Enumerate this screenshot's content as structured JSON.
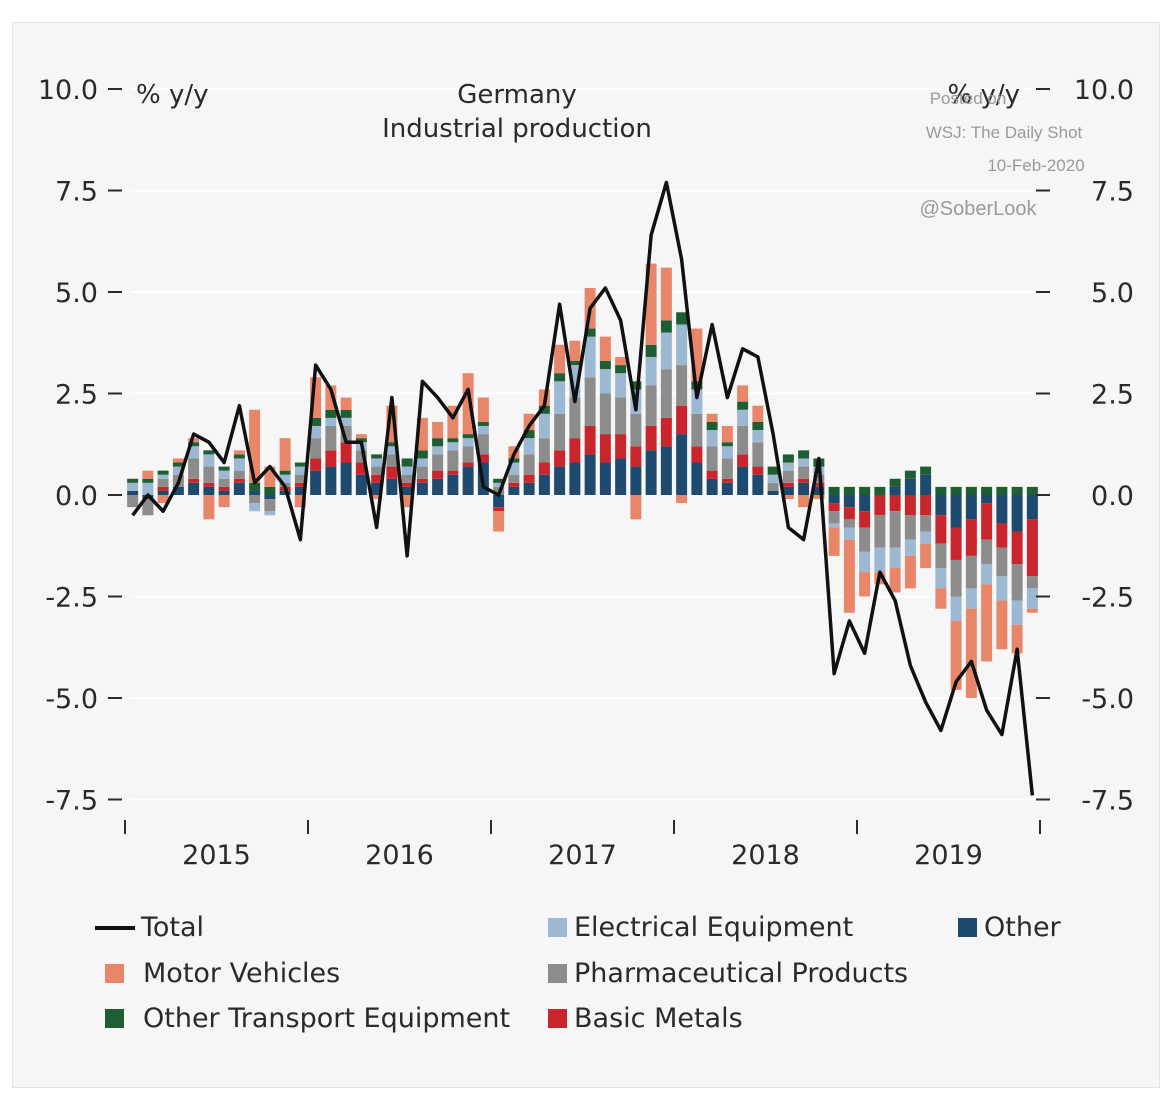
{
  "chart_data": {
    "type": "bar",
    "stacked": true,
    "title": "Germany",
    "subtitle": "Industrial production",
    "unit_left": "% y/y",
    "unit_right": "% y/y",
    "ylim": [
      -7.5,
      10.0
    ],
    "y_ticks": [
      "10.0",
      "7.5",
      "5.0",
      "2.5",
      "0.0",
      "-2.5",
      "-5.0",
      "-7.5"
    ],
    "y_tick_values": [
      10.0,
      7.5,
      5.0,
      2.5,
      0.0,
      -2.5,
      -5.0,
      -7.5
    ],
    "year_labels": [
      "2015",
      "2016",
      "2017",
      "2018",
      "2019"
    ],
    "source_lines": [
      "Posted on",
      "WSJ: The Daily Shot",
      "10-Feb-2020",
      "@SoberLook"
    ],
    "colors": {
      "Total": "#111111",
      "Motor Vehicles": "#e8866a",
      "Other Transport Equipment": "#1e5e32",
      "Electrical Equipment": "#9cb8d2",
      "Pharmaceutical Products": "#8c8c8c",
      "Basic Metals": "#c8262c",
      "Other": "#1d4a6e"
    },
    "legend": [
      {
        "name": "Total",
        "kind": "line"
      },
      {
        "name": "Electrical Equipment",
        "kind": "box"
      },
      {
        "name": "Other",
        "kind": "box"
      },
      {
        "name": "Motor Vehicles",
        "kind": "box"
      },
      {
        "name": "Pharmaceutical Products",
        "kind": "box"
      },
      {
        "name": "Other Transport Equipment",
        "kind": "box"
      },
      {
        "name": "Basic Metals",
        "kind": "box"
      }
    ],
    "months": [
      "2015-01",
      "2015-02",
      "2015-03",
      "2015-04",
      "2015-05",
      "2015-06",
      "2015-07",
      "2015-08",
      "2015-09",
      "2015-10",
      "2015-11",
      "2015-12",
      "2016-01",
      "2016-02",
      "2016-03",
      "2016-04",
      "2016-05",
      "2016-06",
      "2016-07",
      "2016-08",
      "2016-09",
      "2016-10",
      "2016-11",
      "2016-12",
      "2017-01",
      "2017-02",
      "2017-03",
      "2017-04",
      "2017-05",
      "2017-06",
      "2017-07",
      "2017-08",
      "2017-09",
      "2017-10",
      "2017-11",
      "2017-12",
      "2018-01",
      "2018-02",
      "2018-03",
      "2018-04",
      "2018-05",
      "2018-06",
      "2018-07",
      "2018-08",
      "2018-09",
      "2018-10",
      "2018-11",
      "2018-12",
      "2019-01",
      "2019-02",
      "2019-03",
      "2019-04",
      "2019-05",
      "2019-06",
      "2019-07",
      "2019-08",
      "2019-09",
      "2019-10",
      "2019-11",
      "2019-12"
    ],
    "series": [
      {
        "name": "Other",
        "values": [
          0.1,
          -0.1,
          0.1,
          0.2,
          0.3,
          0.2,
          0.1,
          0.3,
          0.1,
          -0.1,
          0.1,
          0.2,
          0.6,
          0.7,
          0.8,
          0.5,
          0.3,
          0.4,
          0.2,
          0.3,
          0.4,
          0.5,
          0.7,
          0.8,
          -0.3,
          0.2,
          0.3,
          0.5,
          0.7,
          0.8,
          1.0,
          0.8,
          0.9,
          0.7,
          1.1,
          1.2,
          1.5,
          0.8,
          0.4,
          0.3,
          0.7,
          0.5,
          0.1,
          0.2,
          0.3,
          0.2,
          -0.2,
          -0.3,
          -0.4,
          0.0,
          0.2,
          0.4,
          0.5,
          -0.5,
          -0.8,
          -0.6,
          -0.2,
          -0.7,
          -0.9,
          -0.6
        ]
      },
      {
        "name": "Basic Metals",
        "values": [
          0.0,
          0.0,
          0.1,
          0.0,
          0.1,
          0.1,
          0.1,
          0.1,
          0.0,
          0.0,
          0.1,
          0.1,
          0.3,
          0.4,
          0.5,
          0.3,
          0.2,
          0.3,
          0.1,
          0.1,
          0.2,
          0.1,
          0.1,
          0.2,
          -0.1,
          0.1,
          0.2,
          0.3,
          0.4,
          0.6,
          0.7,
          0.7,
          0.6,
          0.5,
          0.6,
          0.7,
          0.7,
          0.4,
          0.2,
          0.1,
          0.3,
          0.2,
          0.0,
          0.1,
          0.1,
          0.1,
          -0.2,
          -0.3,
          -0.4,
          -0.5,
          -0.4,
          -0.5,
          -0.5,
          -0.7,
          -0.8,
          -0.9,
          -0.9,
          -0.6,
          -0.8,
          -1.4
        ]
      },
      {
        "name": "Pharmaceutical Products",
        "values": [
          -0.3,
          -0.4,
          0.2,
          0.3,
          0.5,
          0.4,
          0.2,
          0.2,
          -0.2,
          -0.3,
          0.1,
          0.2,
          0.5,
          0.6,
          0.4,
          0.3,
          0.2,
          0.3,
          0.2,
          0.3,
          0.4,
          0.5,
          0.4,
          0.5,
          0.2,
          0.2,
          0.5,
          0.6,
          0.9,
          1.0,
          1.2,
          1.0,
          0.9,
          0.8,
          1.0,
          1.2,
          1.0,
          0.8,
          0.6,
          0.5,
          0.7,
          0.6,
          0.2,
          0.3,
          0.3,
          0.2,
          -0.3,
          -0.2,
          -0.6,
          -0.8,
          -0.9,
          -0.6,
          -0.4,
          -0.6,
          -0.9,
          -0.8,
          -0.6,
          -0.7,
          -0.9,
          -0.3
        ]
      },
      {
        "name": "Electrical Equipment",
        "values": [
          0.2,
          0.3,
          0.1,
          0.2,
          0.3,
          0.3,
          0.2,
          0.3,
          -0.2,
          -0.1,
          0.2,
          0.2,
          0.3,
          0.2,
          0.2,
          0.2,
          0.2,
          0.2,
          0.2,
          0.2,
          0.2,
          0.2,
          0.2,
          0.2,
          0.1,
          0.3,
          0.4,
          0.6,
          0.8,
          0.8,
          1.0,
          0.6,
          0.6,
          0.6,
          0.7,
          0.9,
          1.0,
          0.6,
          0.4,
          0.3,
          0.4,
          0.3,
          0.2,
          0.2,
          0.2,
          0.2,
          -0.1,
          -0.3,
          -0.5,
          -0.6,
          -0.5,
          -0.4,
          -0.3,
          -0.5,
          -0.6,
          -0.5,
          -0.5,
          -0.6,
          -0.6,
          -0.5
        ]
      },
      {
        "name": "Other Transport Equipment",
        "values": [
          0.1,
          0.1,
          0.1,
          0.1,
          0.1,
          0.1,
          0.1,
          0.1,
          0.2,
          0.2,
          0.1,
          0.1,
          0.2,
          0.2,
          0.2,
          0.1,
          0.1,
          0.1,
          0.2,
          0.2,
          0.2,
          0.1,
          0.1,
          0.1,
          0.1,
          0.1,
          0.2,
          0.2,
          0.2,
          0.1,
          0.2,
          0.2,
          0.2,
          0.2,
          0.3,
          0.3,
          0.3,
          0.2,
          0.2,
          0.1,
          0.2,
          0.2,
          0.2,
          0.2,
          0.2,
          0.2,
          0.2,
          0.2,
          0.2,
          0.2,
          0.2,
          0.2,
          0.2,
          0.2,
          0.2,
          0.2,
          0.2,
          0.2,
          0.2,
          0.2
        ]
      },
      {
        "name": "Motor Vehicles",
        "values": [
          0.0,
          0.2,
          -0.2,
          0.1,
          0.1,
          -0.6,
          -0.3,
          0.1,
          1.8,
          0.5,
          0.8,
          -0.3,
          1.0,
          0.6,
          0.3,
          0.1,
          -0.1,
          0.9,
          -0.3,
          0.8,
          0.4,
          0.8,
          1.5,
          0.6,
          -0.5,
          0.3,
          0.4,
          0.4,
          0.7,
          0.5,
          1.0,
          0.6,
          0.2,
          -0.6,
          2.0,
          1.3,
          -0.2,
          1.3,
          0.2,
          0.4,
          0.4,
          0.4,
          0.0,
          -0.1,
          -0.3,
          -0.1,
          -0.7,
          -1.8,
          -0.6,
          -0.3,
          -0.6,
          -0.8,
          -0.6,
          -0.5,
          -1.7,
          -2.2,
          -1.9,
          -1.2,
          -0.7,
          -0.1
        ]
      }
    ],
    "total": [
      -0.5,
      0.0,
      -0.4,
      0.3,
      1.5,
      1.3,
      0.8,
      2.2,
      0.3,
      0.7,
      0.2,
      -1.1,
      3.2,
      2.6,
      1.3,
      1.3,
      -0.8,
      2.4,
      -1.5,
      2.8,
      2.4,
      1.9,
      2.6,
      0.2,
      0.0,
      1.0,
      1.7,
      2.2,
      4.7,
      2.3,
      4.6,
      5.1,
      4.3,
      2.1,
      6.4,
      7.7,
      5.8,
      2.4,
      4.2,
      2.4,
      3.6,
      3.4,
      1.5,
      -0.8,
      -1.1,
      0.9,
      -4.4,
      -3.1,
      -3.9,
      -1.9,
      -2.6,
      -4.2,
      -5.1,
      -5.8,
      -4.6,
      -4.1,
      -5.3,
      -5.9,
      -3.8,
      -7.4
    ]
  }
}
